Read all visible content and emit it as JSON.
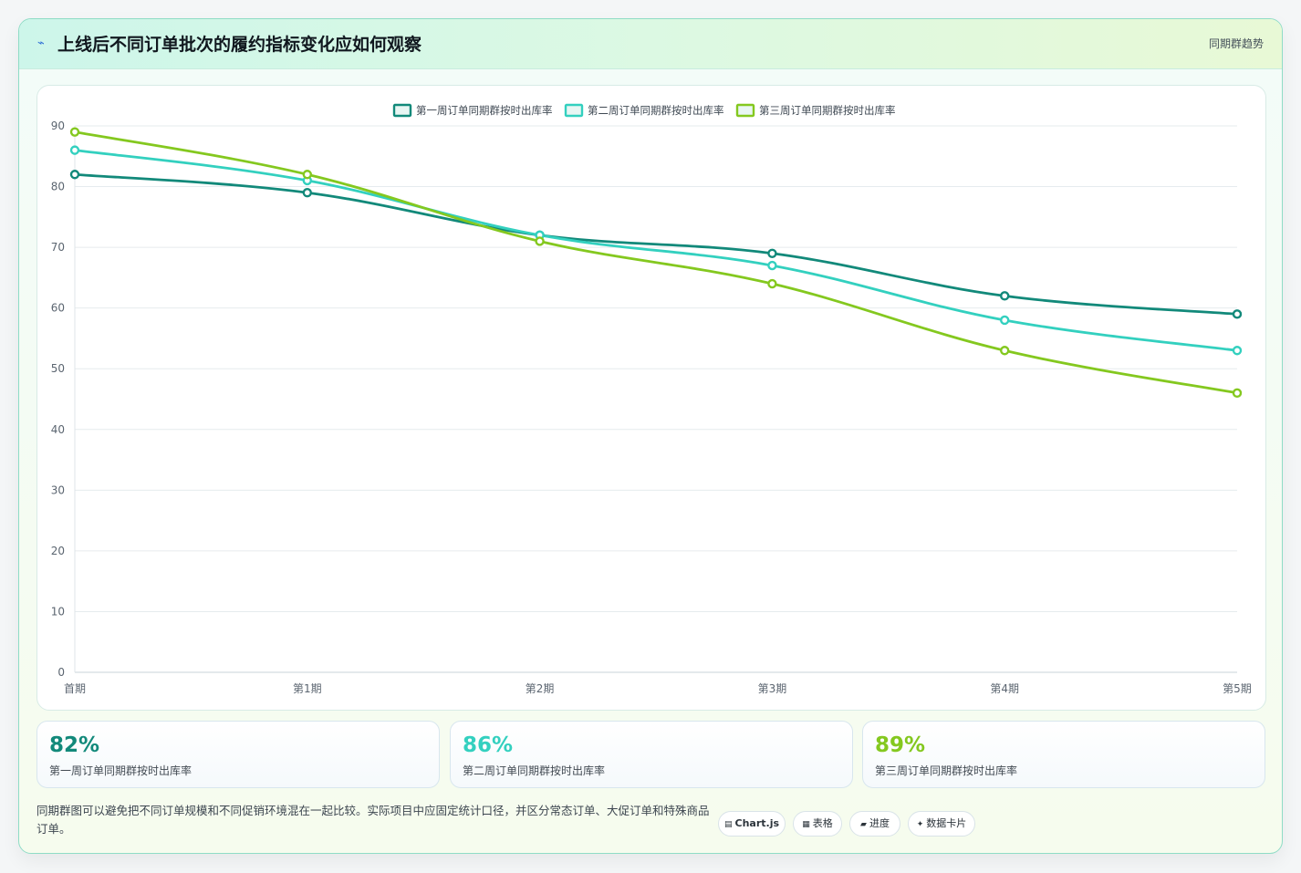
{
  "header": {
    "icon": "lightning-icon",
    "title": "上线后不同订单批次的履约指标变化应如何观察",
    "tag": "同期群趋势"
  },
  "chart_data": {
    "type": "line",
    "categories": [
      "首期",
      "第1期",
      "第2期",
      "第3期",
      "第4期",
      "第5期"
    ],
    "ylim": [
      0,
      90
    ],
    "yticks": [
      0,
      10,
      20,
      30,
      40,
      50,
      60,
      70,
      80,
      90
    ],
    "grid": true,
    "legend_position": "top-center",
    "series": [
      {
        "name": "第一周订单同期群按时出库率",
        "color": "#12897a",
        "values": [
          82,
          79,
          72,
          69,
          62,
          59
        ]
      },
      {
        "name": "第二周订单同期群按时出库率",
        "color": "#33d0bf",
        "values": [
          86,
          81,
          72,
          67,
          58,
          53
        ]
      },
      {
        "name": "第三周订单同期群按时出库率",
        "color": "#84c81f",
        "values": [
          89,
          82,
          71,
          64,
          53,
          46
        ]
      }
    ]
  },
  "stats": [
    {
      "value": "82%",
      "label": "第一周订单同期群按时出库率",
      "color": "#12897a"
    },
    {
      "value": "86%",
      "label": "第二周订单同期群按时出库率",
      "color": "#33d0bf"
    },
    {
      "value": "89%",
      "label": "第三周订单同期群按时出库率",
      "color": "#84c81f"
    }
  ],
  "footer": {
    "note": "同期群图可以避免把不同订单规模和不同促销环境混在一起比较。实际项目中应固定统计口径，并区分常态订单、大促订单和特殊商品订单。",
    "pills": [
      {
        "icon": "▤",
        "icon_name": "chartjs-icon",
        "label": "Chart.js"
      },
      {
        "icon": "▦",
        "icon_name": "table-icon",
        "label": "表格"
      },
      {
        "icon": "▰",
        "icon_name": "progress-icon",
        "label": "进度"
      },
      {
        "icon": "✦",
        "icon_name": "data-card-icon",
        "label": "数据卡片"
      }
    ]
  }
}
